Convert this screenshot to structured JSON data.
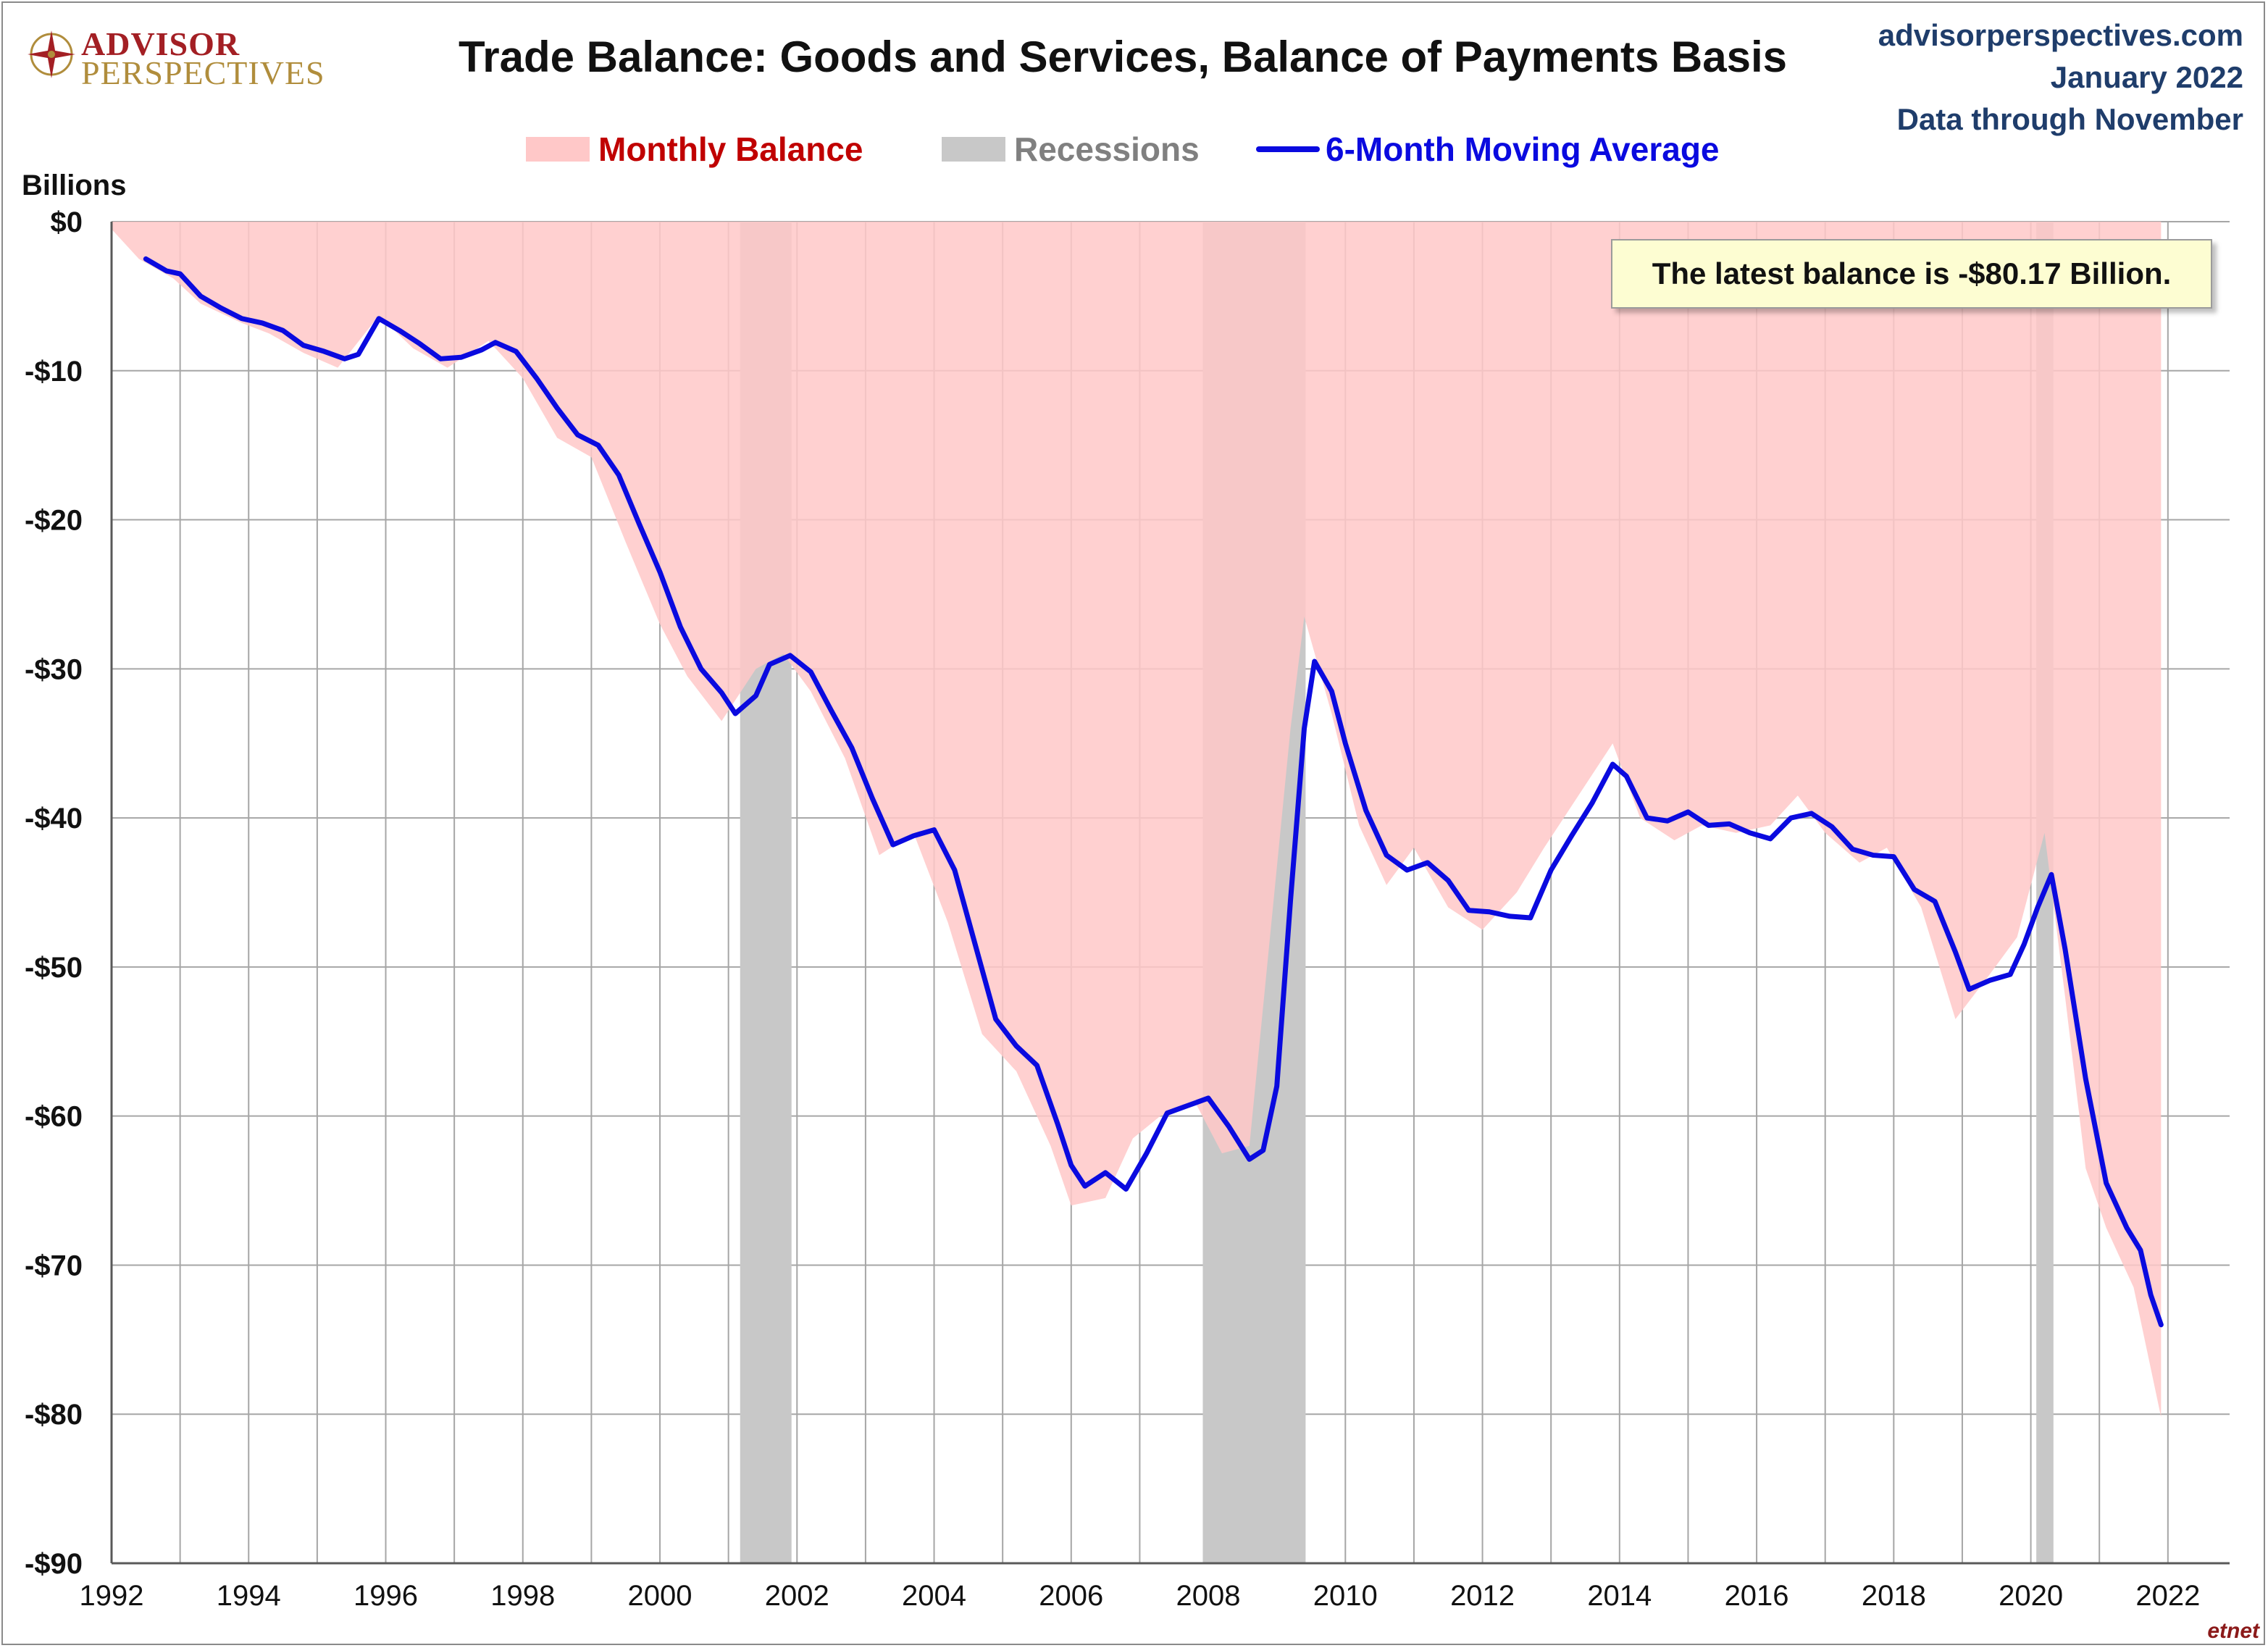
{
  "header": {
    "logo_line1": "ADVISOR",
    "logo_line2": "PERSPECTIVES",
    "title": "Trade Balance: Goods and Services, Balance of Payments Basis",
    "source_lines": [
      "advisorperspectives.com",
      "January 2022",
      "Data through November"
    ]
  },
  "legend": {
    "monthly": "Monthly Balance",
    "recessions": "Recessions",
    "moving_average": "6-Month Moving Average"
  },
  "annotation": "The latest balance is -$80.17 Billion.",
  "watermark": "etnet",
  "colors": {
    "monthly_fill": "#ffc8c8",
    "recession_fill": "#c8c8c8",
    "moving_average_line": "#0a0adf",
    "monthly_legend_text": "#c00000",
    "recession_legend_text": "#808080",
    "ma_legend_text": "#0a0adf"
  },
  "chart_data": {
    "type": "area",
    "ylabel": "Billions",
    "xlim": [
      1992,
      2022.9
    ],
    "ylim": [
      -90,
      0
    ],
    "x_ticks": [
      "1992",
      "1994",
      "1996",
      "1998",
      "2000",
      "2002",
      "2004",
      "2006",
      "2008",
      "2010",
      "2012",
      "2014",
      "2016",
      "2018",
      "2020",
      "2022"
    ],
    "y_ticks": [
      "$0",
      "-$10",
      "-$20",
      "-$30",
      "-$40",
      "-$50",
      "-$60",
      "-$70",
      "-$80",
      "-$90"
    ],
    "grid": true,
    "recessions": [
      [
        2001.17,
        2001.92
      ],
      [
        2007.92,
        2009.42
      ],
      [
        2020.08,
        2020.33
      ]
    ],
    "series": [
      {
        "name": "Monthly Balance",
        "kind": "area",
        "points": [
          [
            1992.0,
            -0.5
          ],
          [
            1992.4,
            -2.5
          ],
          [
            1992.9,
            -3.8
          ],
          [
            1993.3,
            -5.5
          ],
          [
            1993.9,
            -6.8
          ],
          [
            1994.3,
            -7.5
          ],
          [
            1994.8,
            -8.8
          ],
          [
            1995.3,
            -9.8
          ],
          [
            1995.9,
            -6.3
          ],
          [
            1996.4,
            -8.5
          ],
          [
            1996.9,
            -9.8
          ],
          [
            1997.5,
            -8.0
          ],
          [
            1998.0,
            -10.5
          ],
          [
            1998.5,
            -14.5
          ],
          [
            1999.0,
            -15.8
          ],
          [
            1999.5,
            -21.5
          ],
          [
            2000.0,
            -27.0
          ],
          [
            2000.4,
            -30.5
          ],
          [
            2000.9,
            -33.5
          ],
          [
            2001.4,
            -30.0
          ],
          [
            2001.8,
            -29.0
          ],
          [
            2002.2,
            -31.5
          ],
          [
            2002.7,
            -36.0
          ],
          [
            2003.2,
            -42.5
          ],
          [
            2003.7,
            -41.0
          ],
          [
            2004.2,
            -47.0
          ],
          [
            2004.7,
            -54.5
          ],
          [
            2005.2,
            -57.0
          ],
          [
            2005.7,
            -62.0
          ],
          [
            2006.0,
            -66.0
          ],
          [
            2006.5,
            -65.5
          ],
          [
            2006.9,
            -61.5
          ],
          [
            2007.3,
            -60.0
          ],
          [
            2007.8,
            -59.0
          ],
          [
            2008.2,
            -62.5
          ],
          [
            2008.6,
            -62.0
          ],
          [
            2008.9,
            -48.0
          ],
          [
            2009.2,
            -34.0
          ],
          [
            2009.4,
            -26.5
          ],
          [
            2009.8,
            -33.0
          ],
          [
            2010.2,
            -40.5
          ],
          [
            2010.6,
            -44.5
          ],
          [
            2011.0,
            -42.0
          ],
          [
            2011.5,
            -46.0
          ],
          [
            2012.0,
            -47.5
          ],
          [
            2012.5,
            -45.0
          ],
          [
            2012.9,
            -42.0
          ],
          [
            2013.4,
            -38.5
          ],
          [
            2013.9,
            -35.0
          ],
          [
            2014.3,
            -40.0
          ],
          [
            2014.8,
            -41.5
          ],
          [
            2015.2,
            -40.5
          ],
          [
            2015.7,
            -41.0
          ],
          [
            2016.2,
            -40.5
          ],
          [
            2016.6,
            -38.5
          ],
          [
            2017.0,
            -41.0
          ],
          [
            2017.5,
            -43.0
          ],
          [
            2017.9,
            -42.0
          ],
          [
            2018.4,
            -46.0
          ],
          [
            2018.9,
            -53.5
          ],
          [
            2019.4,
            -50.5
          ],
          [
            2019.8,
            -48.0
          ],
          [
            2020.2,
            -41.0
          ],
          [
            2020.5,
            -52.0
          ],
          [
            2020.8,
            -63.5
          ],
          [
            2021.1,
            -67.5
          ],
          [
            2021.5,
            -71.5
          ],
          [
            2021.9,
            -80.2
          ]
        ]
      },
      {
        "name": "6-Month Moving Average",
        "kind": "line",
        "points": [
          [
            1992.5,
            -2.5
          ],
          [
            1992.8,
            -3.3
          ],
          [
            1993.0,
            -3.5
          ],
          [
            1993.3,
            -5.0
          ],
          [
            1993.6,
            -5.8
          ],
          [
            1993.9,
            -6.5
          ],
          [
            1994.2,
            -6.8
          ],
          [
            1994.5,
            -7.3
          ],
          [
            1994.8,
            -8.3
          ],
          [
            1995.1,
            -8.7
          ],
          [
            1995.4,
            -9.2
          ],
          [
            1995.6,
            -8.9
          ],
          [
            1995.9,
            -6.5
          ],
          [
            1996.2,
            -7.3
          ],
          [
            1996.5,
            -8.2
          ],
          [
            1996.8,
            -9.2
          ],
          [
            1997.1,
            -9.1
          ],
          [
            1997.4,
            -8.6
          ],
          [
            1997.6,
            -8.1
          ],
          [
            1997.9,
            -8.7
          ],
          [
            1998.2,
            -10.5
          ],
          [
            1998.5,
            -12.5
          ],
          [
            1998.8,
            -14.3
          ],
          [
            1999.1,
            -15.0
          ],
          [
            1999.4,
            -17.0
          ],
          [
            1999.7,
            -20.3
          ],
          [
            2000.0,
            -23.5
          ],
          [
            2000.3,
            -27.2
          ],
          [
            2000.6,
            -30.0
          ],
          [
            2000.9,
            -31.6
          ],
          [
            2001.1,
            -33.0
          ],
          [
            2001.4,
            -31.8
          ],
          [
            2001.6,
            -29.7
          ],
          [
            2001.9,
            -29.1
          ],
          [
            2002.2,
            -30.2
          ],
          [
            2002.5,
            -32.8
          ],
          [
            2002.8,
            -35.3
          ],
          [
            2003.1,
            -38.7
          ],
          [
            2003.4,
            -41.8
          ],
          [
            2003.7,
            -41.2
          ],
          [
            2004.0,
            -40.8
          ],
          [
            2004.3,
            -43.5
          ],
          [
            2004.6,
            -48.5
          ],
          [
            2004.9,
            -53.5
          ],
          [
            2005.2,
            -55.3
          ],
          [
            2005.5,
            -56.6
          ],
          [
            2005.8,
            -60.5
          ],
          [
            2006.0,
            -63.3
          ],
          [
            2006.2,
            -64.7
          ],
          [
            2006.5,
            -63.8
          ],
          [
            2006.8,
            -64.9
          ],
          [
            2007.1,
            -62.5
          ],
          [
            2007.4,
            -59.8
          ],
          [
            2007.7,
            -59.3
          ],
          [
            2008.0,
            -58.8
          ],
          [
            2008.3,
            -60.7
          ],
          [
            2008.6,
            -62.9
          ],
          [
            2008.8,
            -62.3
          ],
          [
            2009.0,
            -58.0
          ],
          [
            2009.2,
            -45.5
          ],
          [
            2009.4,
            -34.0
          ],
          [
            2009.55,
            -29.5
          ],
          [
            2009.8,
            -31.5
          ],
          [
            2010.0,
            -35.0
          ],
          [
            2010.3,
            -39.5
          ],
          [
            2010.6,
            -42.5
          ],
          [
            2010.9,
            -43.5
          ],
          [
            2011.2,
            -43.0
          ],
          [
            2011.5,
            -44.2
          ],
          [
            2011.8,
            -46.2
          ],
          [
            2012.1,
            -46.3
          ],
          [
            2012.4,
            -46.6
          ],
          [
            2012.7,
            -46.7
          ],
          [
            2013.0,
            -43.5
          ],
          [
            2013.3,
            -41.2
          ],
          [
            2013.6,
            -39.0
          ],
          [
            2013.9,
            -36.4
          ],
          [
            2014.1,
            -37.2
          ],
          [
            2014.4,
            -40.0
          ],
          [
            2014.7,
            -40.2
          ],
          [
            2015.0,
            -39.6
          ],
          [
            2015.3,
            -40.5
          ],
          [
            2015.6,
            -40.4
          ],
          [
            2015.9,
            -41.0
          ],
          [
            2016.2,
            -41.4
          ],
          [
            2016.5,
            -40.0
          ],
          [
            2016.8,
            -39.7
          ],
          [
            2017.1,
            -40.6
          ],
          [
            2017.4,
            -42.1
          ],
          [
            2017.7,
            -42.5
          ],
          [
            2018.0,
            -42.6
          ],
          [
            2018.3,
            -44.8
          ],
          [
            2018.6,
            -45.6
          ],
          [
            2018.9,
            -49.0
          ],
          [
            2019.1,
            -51.5
          ],
          [
            2019.4,
            -50.9
          ],
          [
            2019.7,
            -50.5
          ],
          [
            2019.9,
            -48.5
          ],
          [
            2020.1,
            -46.0
          ],
          [
            2020.3,
            -43.8
          ],
          [
            2020.5,
            -48.8
          ],
          [
            2020.8,
            -57.5
          ],
          [
            2021.1,
            -64.5
          ],
          [
            2021.4,
            -67.5
          ],
          [
            2021.6,
            -69.0
          ],
          [
            2021.75,
            -72.0
          ],
          [
            2021.9,
            -74.0
          ]
        ]
      }
    ]
  }
}
